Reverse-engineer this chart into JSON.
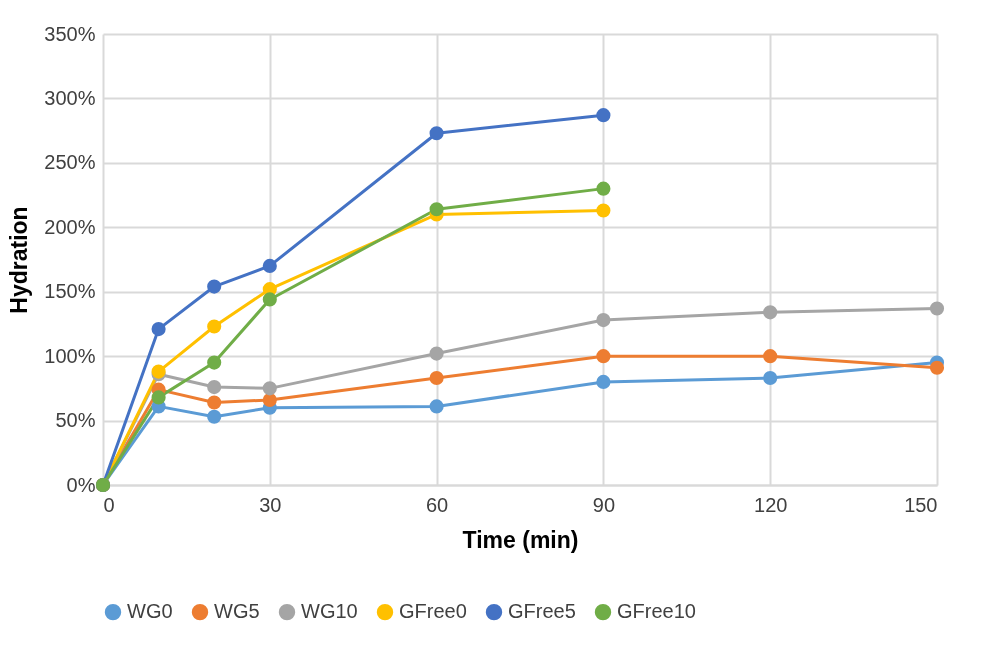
{
  "chart_data": {
    "type": "line",
    "xlabel": "Time (min)",
    "ylabel": "Hydration",
    "xlim": [
      0,
      150
    ],
    "xticks": [
      0,
      30,
      60,
      90,
      120,
      150
    ],
    "ylim": [
      0,
      350
    ],
    "yticks": [
      {
        "value": 0,
        "label": "0%"
      },
      {
        "value": 50,
        "label": "50%"
      },
      {
        "value": 100,
        "label": "100%"
      },
      {
        "value": 150,
        "label": "150%"
      },
      {
        "value": 200,
        "label": "200%"
      },
      {
        "value": 250,
        "label": "250%"
      },
      {
        "value": 300,
        "label": "300%"
      },
      {
        "value": 350,
        "label": "350%"
      }
    ],
    "grid": true,
    "legend": "bottom",
    "marker": "circle",
    "line_style": "solid",
    "series": [
      {
        "name": "WG0",
        "color": "#5b9bd5",
        "x": [
          0,
          10,
          20,
          30,
          60,
          90,
          120,
          150
        ],
        "values": [
          0,
          61,
          53,
          60,
          61,
          80,
          83,
          95
        ]
      },
      {
        "name": "WG5",
        "color": "#ed7d31",
        "x": [
          0,
          10,
          20,
          30,
          60,
          90,
          120,
          150
        ],
        "values": [
          0,
          74,
          64,
          66,
          83,
          100,
          100,
          91
        ]
      },
      {
        "name": "WG10",
        "color": "#a5a5a5",
        "x": [
          0,
          10,
          20,
          30,
          60,
          90,
          120,
          150
        ],
        "values": [
          0,
          86,
          76,
          75,
          102,
          128,
          134,
          137
        ]
      },
      {
        "name": "GFree0",
        "color": "#ffc000",
        "x": [
          0,
          10,
          20,
          30,
          60,
          90
        ],
        "values": [
          0,
          88,
          123,
          152,
          210,
          213
        ]
      },
      {
        "name": "GFree5",
        "color": "#4472c4",
        "x": [
          0,
          10,
          20,
          30,
          60,
          90
        ],
        "values": [
          0,
          121,
          154,
          170,
          273,
          287
        ]
      },
      {
        "name": "GFree10",
        "color": "#70ad47",
        "x": [
          0,
          10,
          20,
          30,
          60,
          90
        ],
        "values": [
          0,
          68,
          95,
          144,
          214,
          230
        ]
      }
    ]
  }
}
